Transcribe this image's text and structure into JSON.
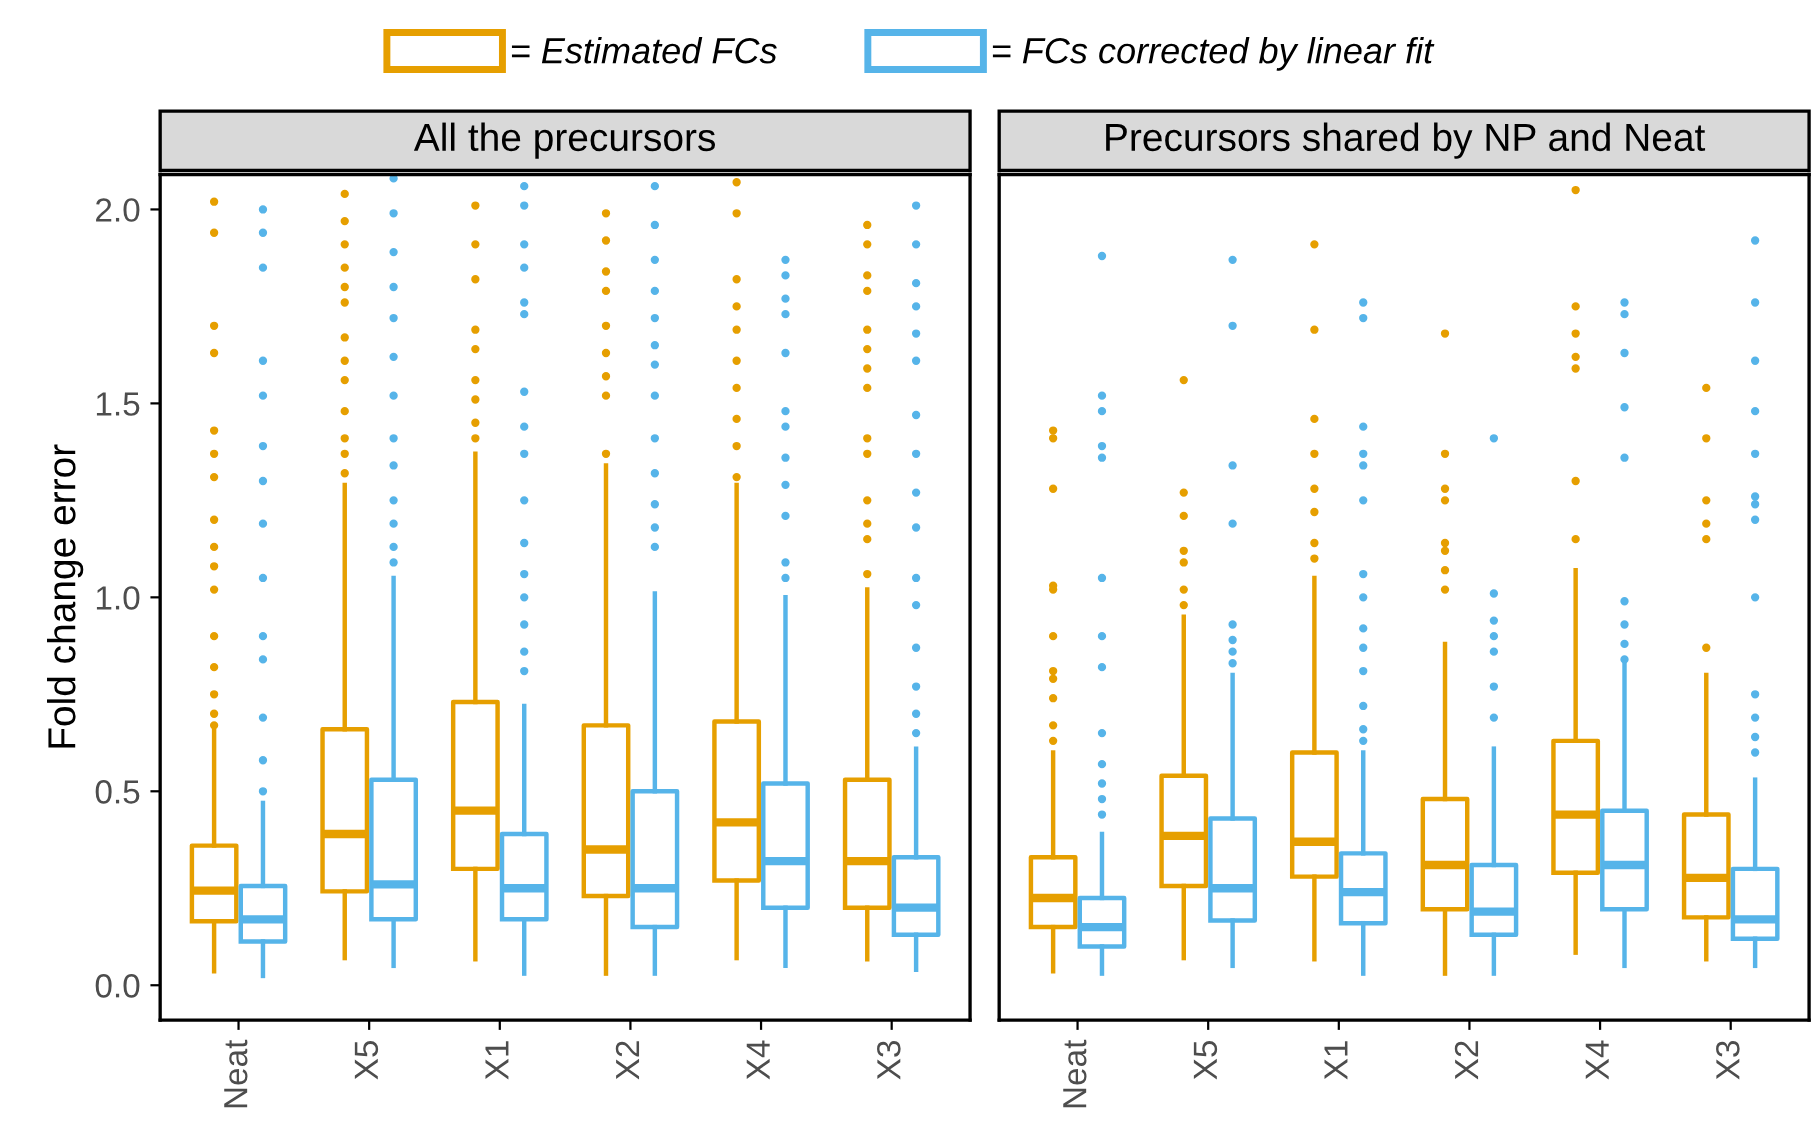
{
  "chart_data": [
    {
      "type": "box",
      "title": "All the precursors",
      "ylabel": "Fold change error",
      "categories": [
        "Neat",
        "X5",
        "X1",
        "X2",
        "X4",
        "X3"
      ],
      "ylim": [
        -0.09,
        2.09
      ],
      "yticks": [
        {
          "value": 0,
          "label": "0.0"
        },
        {
          "value": 0.5,
          "label": "0.5"
        },
        {
          "value": 1,
          "label": "1.0"
        },
        {
          "value": 1.5,
          "label": "1.5"
        },
        {
          "value": 2,
          "label": "2.0"
        }
      ],
      "grid": false,
      "legend": "top",
      "series": [
        {
          "name": "= Estimated FCs",
          "color": "#e69f00",
          "boxes": [
            {
              "low": 0.036,
              "q1": 0.165,
              "median": 0.244,
              "q3": 0.36,
              "high": 0.655,
              "outliers": [
                2.02,
                1.94,
                1.7,
                1.63,
                1.43,
                1.37,
                1.31,
                1.2,
                1.13,
                1.08,
                1.02,
                0.9,
                0.82,
                0.75,
                0.7,
                0.67
              ]
            },
            {
              "low": 0.07,
              "q1": 0.242,
              "median": 0.39,
              "q3": 0.66,
              "high": 1.29,
              "outliers": [
                2.04,
                1.97,
                1.91,
                1.85,
                1.8,
                1.76,
                1.67,
                1.61,
                1.56,
                1.48,
                1.41,
                1.37,
                1.32
              ]
            },
            {
              "low": 0.067,
              "q1": 0.3,
              "median": 0.45,
              "q3": 0.73,
              "high": 1.37,
              "outliers": [
                2.01,
                1.91,
                1.82,
                1.69,
                1.64,
                1.56,
                1.51,
                1.45,
                1.41
              ]
            },
            {
              "low": 0.03,
              "q1": 0.23,
              "median": 0.35,
              "q3": 0.67,
              "high": 1.34,
              "outliers": [
                1.99,
                1.92,
                1.84,
                1.79,
                1.7,
                1.63,
                1.57,
                1.52,
                1.37
              ]
            },
            {
              "low": 0.07,
              "q1": 0.27,
              "median": 0.42,
              "q3": 0.68,
              "high": 1.29,
              "outliers": [
                2.07,
                1.99,
                1.82,
                1.75,
                1.69,
                1.61,
                1.54,
                1.46,
                1.39,
                1.31
              ]
            },
            {
              "low": 0.067,
              "q1": 0.2,
              "median": 0.32,
              "q3": 0.53,
              "high": 1.02,
              "outliers": [
                1.96,
                1.91,
                1.83,
                1.79,
                1.69,
                1.64,
                1.59,
                1.54,
                1.41,
                1.37,
                1.25,
                1.19,
                1.15,
                1.06
              ]
            }
          ]
        },
        {
          "name": "= FCs corrected by linear fit",
          "color": "#56b4e9",
          "boxes": [
            {
              "low": 0.024,
              "q1": 0.113,
              "median": 0.17,
              "q3": 0.256,
              "high": 0.47,
              "outliers": [
                2.0,
                1.94,
                1.85,
                1.61,
                1.52,
                1.39,
                1.3,
                1.19,
                1.05,
                0.9,
                0.84,
                0.69,
                0.58,
                0.5
              ]
            },
            {
              "low": 0.05,
              "q1": 0.17,
              "median": 0.26,
              "q3": 0.53,
              "high": 1.05,
              "outliers": [
                2.08,
                1.99,
                1.89,
                1.8,
                1.72,
                1.62,
                1.52,
                1.41,
                1.34,
                1.25,
                1.19,
                1.13,
                1.09
              ]
            },
            {
              "low": 0.03,
              "q1": 0.17,
              "median": 0.25,
              "q3": 0.39,
              "high": 0.72,
              "outliers": [
                2.06,
                2.01,
                1.91,
                1.85,
                1.76,
                1.73,
                1.53,
                1.44,
                1.37,
                1.25,
                1.14,
                1.06,
                1.0,
                0.93,
                0.86,
                0.81
              ]
            },
            {
              "low": 0.03,
              "q1": 0.15,
              "median": 0.25,
              "q3": 0.5,
              "high": 1.01,
              "outliers": [
                2.06,
                1.96,
                1.87,
                1.79,
                1.72,
                1.65,
                1.6,
                1.52,
                1.41,
                1.32,
                1.24,
                1.18,
                1.13
              ]
            },
            {
              "low": 0.05,
              "q1": 0.2,
              "median": 0.32,
              "q3": 0.52,
              "high": 1.0,
              "outliers": [
                1.87,
                1.83,
                1.77,
                1.73,
                1.63,
                1.48,
                1.44,
                1.36,
                1.29,
                1.21,
                1.09,
                1.05
              ]
            },
            {
              "low": 0.04,
              "q1": 0.13,
              "median": 0.2,
              "q3": 0.33,
              "high": 0.61,
              "outliers": [
                2.01,
                1.91,
                1.81,
                1.75,
                1.68,
                1.61,
                1.47,
                1.37,
                1.27,
                1.18,
                1.05,
                0.98,
                0.87,
                0.77,
                0.7,
                0.65
              ]
            }
          ]
        }
      ]
    },
    {
      "type": "box",
      "title": "Precursors shared by NP and Neat",
      "categories": [
        "Neat",
        "X5",
        "X1",
        "X2",
        "X4",
        "X3"
      ],
      "ylim": [
        -0.09,
        2.09
      ],
      "tick_labels": "x",
      "grid": false,
      "series": [
        {
          "color": "#e69f00",
          "boxes": [
            {
              "low": 0.036,
              "q1": 0.15,
              "median": 0.225,
              "q3": 0.33,
              "high": 0.6,
              "outliers": [
                1.43,
                1.41,
                1.28,
                1.03,
                1.02,
                0.9,
                0.81,
                0.79,
                0.74,
                0.67,
                0.63
              ]
            },
            {
              "low": 0.07,
              "q1": 0.256,
              "median": 0.385,
              "q3": 0.54,
              "high": 0.95,
              "outliers": [
                1.56,
                1.27,
                1.21,
                1.12,
                1.09,
                1.02,
                0.98
              ]
            },
            {
              "low": 0.067,
              "q1": 0.28,
              "median": 0.37,
              "q3": 0.6,
              "high": 1.05,
              "outliers": [
                1.91,
                1.69,
                1.46,
                1.37,
                1.28,
                1.22,
                1.14,
                1.1
              ]
            },
            {
              "low": 0.03,
              "q1": 0.196,
              "median": 0.31,
              "q3": 0.48,
              "high": 0.88,
              "outliers": [
                1.68,
                1.37,
                1.28,
                1.25,
                1.14,
                1.12,
                1.07,
                1.02
              ]
            },
            {
              "low": 0.084,
              "q1": 0.29,
              "median": 0.44,
              "q3": 0.63,
              "high": 1.07,
              "outliers": [
                2.05,
                1.75,
                1.68,
                1.62,
                1.59,
                1.3,
                1.15
              ]
            },
            {
              "low": 0.067,
              "q1": 0.175,
              "median": 0.277,
              "q3": 0.44,
              "high": 0.8,
              "outliers": [
                1.54,
                1.41,
                1.25,
                1.19,
                1.15,
                0.87
              ]
            }
          ]
        },
        {
          "color": "#56b4e9",
          "boxes": [
            {
              "low": 0.03,
              "q1": 0.1,
              "median": 0.15,
              "q3": 0.225,
              "high": 0.39,
              "outliers": [
                1.88,
                1.52,
                1.48,
                1.39,
                1.36,
                1.05,
                0.9,
                0.82,
                0.65,
                0.57,
                0.52,
                0.48,
                0.44
              ]
            },
            {
              "low": 0.05,
              "q1": 0.167,
              "median": 0.25,
              "q3": 0.43,
              "high": 0.8,
              "outliers": [
                1.87,
                1.7,
                1.34,
                1.19,
                0.93,
                0.89,
                0.86,
                0.83
              ]
            },
            {
              "low": 0.03,
              "q1": 0.16,
              "median": 0.24,
              "q3": 0.34,
              "high": 0.6,
              "outliers": [
                1.76,
                1.72,
                1.44,
                1.37,
                1.34,
                1.25,
                1.06,
                1.0,
                0.92,
                0.87,
                0.81,
                0.72,
                0.66,
                0.63
              ]
            },
            {
              "low": 0.03,
              "q1": 0.13,
              "median": 0.19,
              "q3": 0.31,
              "high": 0.61,
              "outliers": [
                1.41,
                1.01,
                0.94,
                0.9,
                0.86,
                0.77,
                0.69
              ]
            },
            {
              "low": 0.05,
              "q1": 0.196,
              "median": 0.31,
              "q3": 0.45,
              "high": 0.83,
              "outliers": [
                1.76,
                1.73,
                1.63,
                1.49,
                1.36,
                0.99,
                0.93,
                0.88,
                0.84
              ]
            },
            {
              "low": 0.05,
              "q1": 0.12,
              "median": 0.17,
              "q3": 0.3,
              "high": 0.53,
              "outliers": [
                1.92,
                1.76,
                1.61,
                1.48,
                1.37,
                1.26,
                1.24,
                1.2,
                1.0,
                0.75,
                0.69,
                0.64,
                0.6
              ]
            }
          ]
        }
      ]
    }
  ]
}
